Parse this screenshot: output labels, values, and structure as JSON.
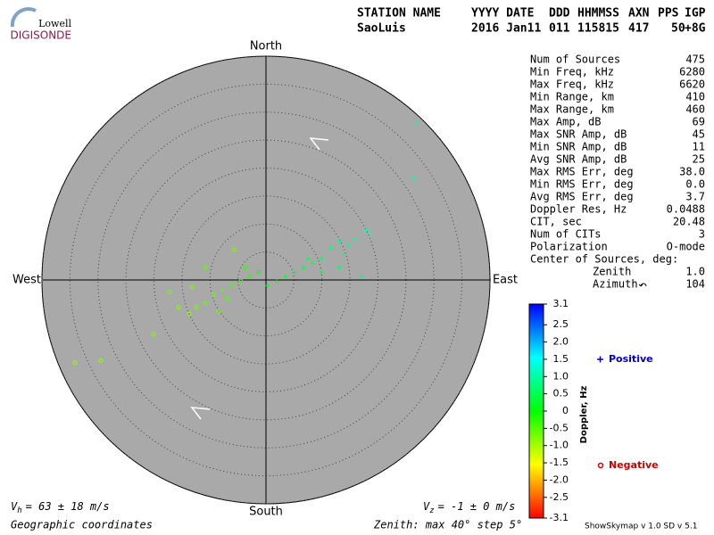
{
  "logo": {
    "line1": "Lowell",
    "line2": "DIGISONDE"
  },
  "header": {
    "labels": [
      "STATION NAME",
      "YYYY DATE",
      "DDD",
      "HHMMSS",
      "AXN",
      "PPS",
      "IGP"
    ],
    "values": [
      "SaoLuis",
      "2016 Jan11",
      "011",
      "115815",
      "417",
      "50",
      "+8G"
    ]
  },
  "stats": {
    "rows": [
      [
        "Num of Sources",
        475
      ],
      [
        "Min Freq, kHz",
        6280
      ],
      [
        "Max Freq, kHz",
        6620
      ],
      [
        "Min Range, km",
        410
      ],
      [
        "Max Range, km",
        460
      ],
      [
        "Max Amp, dB",
        69
      ],
      [
        "Max SNR Amp, dB",
        45
      ],
      [
        "Min SNR Amp, dB",
        11
      ],
      [
        "Avg SNR Amp, dB",
        25
      ],
      [
        "Max RMS Err, deg",
        "38.0"
      ],
      [
        "Min RMS Err, deg",
        "0.0"
      ],
      [
        "Avg RMS Err, deg",
        "3.7"
      ],
      [
        "Doppler Res, Hz",
        0.0488
      ],
      [
        "CIT, sec",
        20.48
      ],
      [
        "Num of CITs",
        3
      ],
      [
        "Polarization",
        "O-mode"
      ]
    ],
    "center_title": "Center of Sources, deg:",
    "center_rows": [
      [
        "Zenith",
        "1.0"
      ],
      [
        "Azimuth",
        104
      ]
    ]
  },
  "footer": {
    "vh": {
      "symbol": "V",
      "sub": "h",
      "text": "= 63 ± 18 m/s"
    },
    "vz": {
      "symbol": "V",
      "sub": "z",
      "text": "= -1 ± 0 m/s"
    },
    "coords": "Geographic coordinates",
    "zenith": "Zenith: max 40°  step 5°",
    "version": "ShowSkymap v 1.0  SD v 5.1"
  },
  "chart_data": {
    "type": "polar-scatter",
    "directions": {
      "north": "North",
      "south": "South",
      "east": "East",
      "west": "West"
    },
    "rlim": [
      0,
      40
    ],
    "rticks": [
      5,
      10,
      15,
      20,
      25,
      30,
      35,
      40
    ],
    "colorbar": {
      "label": "Doppler, Hz",
      "clim": [
        -3.1,
        3.1
      ],
      "colormap": [
        "#ff0000",
        "#ffff00",
        "#00ff00",
        "#00ffff",
        "#0000ff"
      ],
      "ticks": [
        3.1,
        2.5,
        {
          "value": 2,
          "label": "2.0"
        },
        1.5,
        {
          "value": 1,
          "label": "1.0"
        },
        0.5,
        0,
        -0.5,
        {
          "value": -1,
          "label": "-1.0"
        },
        -1.5,
        {
          "value": -2,
          "label": "-2.0"
        },
        -2.5,
        -3.1
      ]
    },
    "series": [
      {
        "name": "Positive",
        "color": "#0000cc",
        "marker": "plus",
        "x": [
          26.8,
          26.5,
          17.9,
          18.7,
          15.9,
          13.1,
          13.9,
          11.5,
          9.9,
          8.3,
          6.7,
          5.1,
          3.5,
          1.9,
          0.3,
          17.1,
          13.1,
          9.9,
          7.5,
          14.7
        ],
        "y": [
          28.1,
          18.2,
          8.9,
          8.3,
          7.3,
          7.0,
          4.6,
          5.7,
          3.8,
          3.0,
          2.2,
          1.4,
          0.6,
          -0.2,
          -1.0,
          0.6,
          2.2,
          1.4,
          3.8,
          6.2
        ],
        "doppler": [
          0.9,
          0.9,
          1.2,
          1.2,
          1.0,
          0.8,
          0.8,
          0.7,
          0.6,
          0.5,
          0.4,
          0.3,
          0.3,
          0.2,
          0.2,
          0.7,
          0.6,
          0.4,
          0.5,
          0.9
        ]
      },
      {
        "name": "Negative",
        "color": "#cc0000",
        "marker": "circle",
        "x": [
          -34.1,
          -29.5,
          -20.1,
          -17.2,
          -13.7,
          -13.2,
          -10.8,
          -9.3,
          -7.7,
          -6.1,
          -4.5,
          -2.9,
          -1.3,
          -6.9,
          -8.5,
          -5.7,
          -10.8,
          -3.7,
          -12.4,
          -15.6
        ],
        "y": [
          -14.8,
          -14.4,
          -9.7,
          -2.2,
          -6.1,
          -1.3,
          -4.1,
          -2.6,
          -1.8,
          -1.0,
          -0.2,
          0.6,
          1.4,
          -3.3,
          -5.7,
          5.4,
          2.2,
          2.2,
          -4.9,
          -4.9
        ],
        "doppler": [
          -0.9,
          -0.9,
          -0.8,
          -0.7,
          -0.8,
          -0.7,
          -0.6,
          -0.6,
          -0.5,
          -0.4,
          -0.3,
          -0.2,
          -0.1,
          -0.5,
          -0.6,
          -0.7,
          -0.6,
          -0.3,
          -0.7,
          -0.8
        ]
      }
    ]
  }
}
